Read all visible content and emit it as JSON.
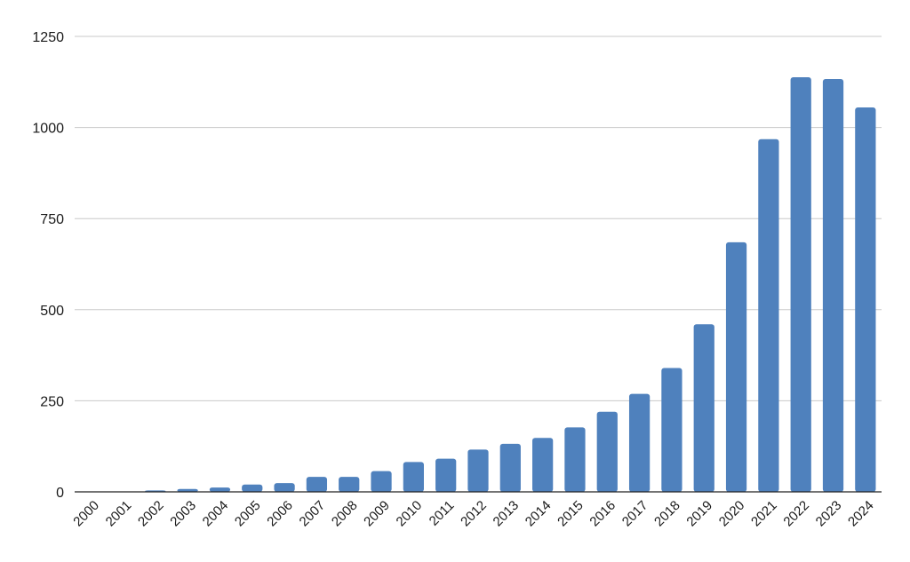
{
  "chart_data": {
    "type": "bar",
    "title": "",
    "xlabel": "",
    "ylabel": "",
    "categories": [
      "2000",
      "2001",
      "2002",
      "2003",
      "2004",
      "2005",
      "2006",
      "2007",
      "2008",
      "2009",
      "2010",
      "2011",
      "2012",
      "2013",
      "2014",
      "2015",
      "2016",
      "2017",
      "2018",
      "2019",
      "2020",
      "2021",
      "2022",
      "2023",
      "2024"
    ],
    "values": [
      0,
      0,
      4,
      8,
      12,
      20,
      24,
      41,
      41,
      57,
      82,
      91,
      116,
      132,
      148,
      177,
      220,
      269,
      340,
      460,
      685,
      968,
      1138,
      1133,
      1055
    ],
    "ylim": [
      0,
      1250
    ],
    "yticks": [
      0,
      250,
      500,
      750,
      1000,
      1250
    ],
    "grid": true,
    "legend": "none",
    "bar_color": "#4f81bd"
  }
}
